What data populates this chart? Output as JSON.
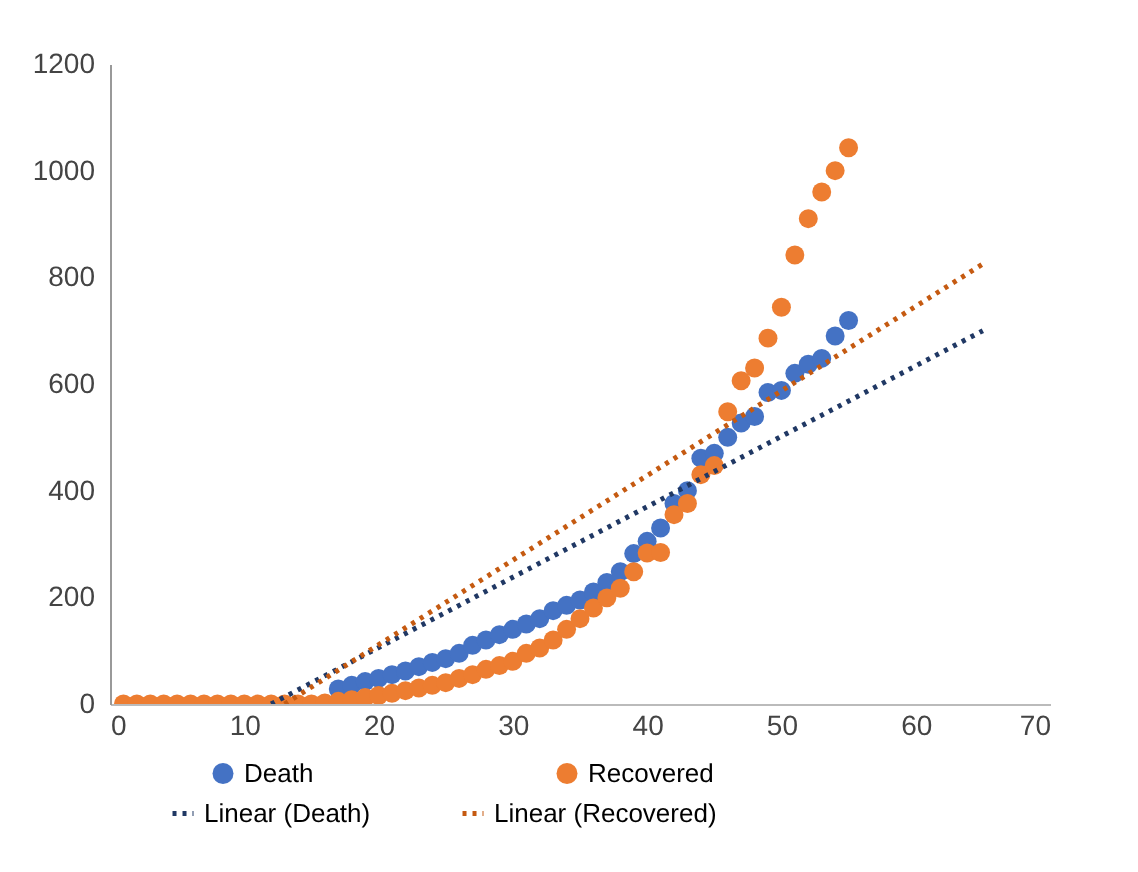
{
  "chart_data": {
    "type": "scatter",
    "legend": "bottom",
    "grid": false,
    "xlim": [
      0,
      70
    ],
    "xticks": [
      0,
      10,
      20,
      30,
      40,
      50,
      60,
      70
    ],
    "ylim": [
      0,
      1200
    ],
    "yticks": [
      0,
      200,
      400,
      600,
      800,
      1000,
      1200
    ],
    "x": [
      1,
      2,
      3,
      4,
      5,
      6,
      7,
      8,
      9,
      10,
      11,
      12,
      13,
      14,
      15,
      16,
      17,
      18,
      19,
      20,
      21,
      22,
      23,
      24,
      25,
      26,
      27,
      28,
      29,
      30,
      31,
      32,
      33,
      34,
      35,
      36,
      37,
      38,
      39,
      40,
      41,
      42,
      43,
      44,
      45,
      46,
      47,
      48,
      49,
      50,
      51,
      52,
      53,
      54,
      55
    ],
    "series": [
      {
        "name": "Death",
        "marker": "circle",
        "color": "#4472c4",
        "values": [
          null,
          null,
          null,
          null,
          null,
          null,
          null,
          null,
          null,
          null,
          null,
          null,
          null,
          null,
          null,
          null,
          28,
          35,
          42,
          48,
          55,
          62,
          70,
          78,
          85,
          95,
          110,
          120,
          130,
          140,
          150,
          160,
          175,
          185,
          195,
          210,
          228,
          248,
          282,
          305,
          330,
          376,
          400,
          461,
          470,
          500,
          527,
          539,
          584,
          588,
          620,
          637,
          648,
          690,
          719
        ]
      },
      {
        "name": "Recovered",
        "marker": "circle",
        "color": "#ed7d31",
        "values": [
          0,
          0,
          0,
          0,
          0,
          0,
          0,
          0,
          0,
          0,
          0,
          0,
          0,
          0,
          0,
          2,
          5,
          8,
          12,
          16,
          20,
          25,
          30,
          35,
          40,
          48,
          55,
          65,
          72,
          80,
          95,
          105,
          120,
          140,
          160,
          180,
          199,
          217,
          248,
          283,
          284,
          355,
          376,
          430,
          447,
          548,
          606,
          630,
          686,
          744,
          842,
          910,
          960,
          1000,
          1043
        ]
      },
      {
        "name": "Linear (Death)",
        "type": "line",
        "line_style": "dotted",
        "color": "#203864",
        "x": [
          12,
          65
        ],
        "values": [
          0,
          700
        ]
      },
      {
        "name": "Linear (Recovered)",
        "type": "line",
        "line_style": "dotted",
        "color": "#c55a11",
        "x": [
          13,
          65
        ],
        "values": [
          0,
          825
        ]
      }
    ]
  }
}
